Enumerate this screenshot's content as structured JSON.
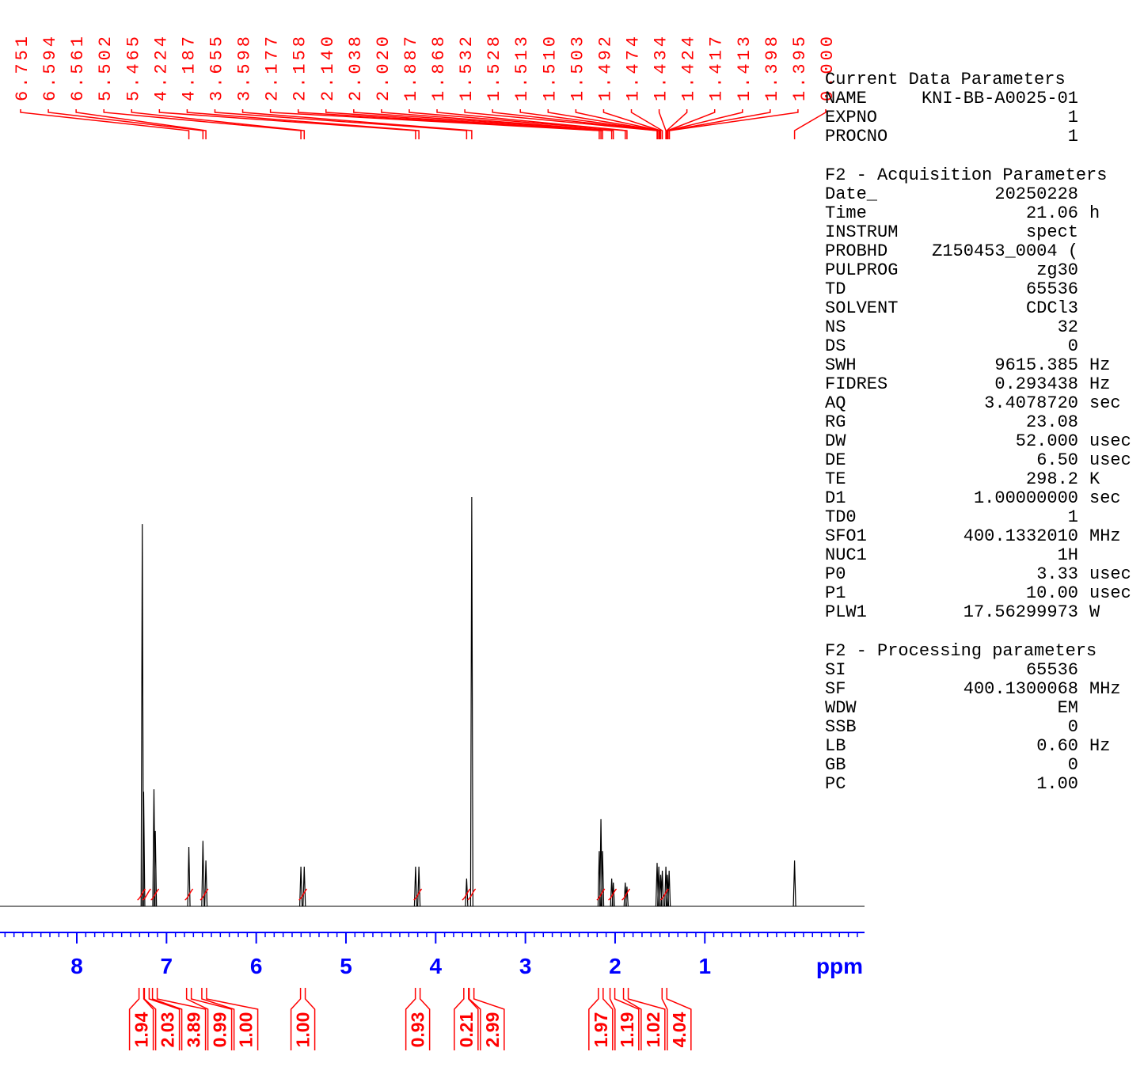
{
  "chart_data": {
    "type": "nmr",
    "color": "#000000",
    "annotation_color": "#ff0000",
    "axis_color": "#0000ff",
    "x_label": "ppm",
    "xlim": [
      8.856,
      -0.78
    ],
    "ylim": [
      0,
      100
    ],
    "xticks": [
      8,
      7,
      6,
      5,
      4,
      3,
      2,
      1
    ],
    "minor_step": 0.1,
    "peaks": [
      6.751,
      6.594,
      6.561,
      5.502,
      5.465,
      4.224,
      4.187,
      3.655,
      3.598,
      2.177,
      2.158,
      {
        "value": 2.14,
        "label": "2.140"
      },
      2.038,
      {
        "value": 2.02,
        "label": "2.020"
      },
      1.887,
      1.868,
      1.532,
      1.528,
      1.513,
      {
        "value": 1.51,
        "label": "1.510"
      },
      1.503,
      1.492,
      1.474,
      1.434,
      1.424,
      1.417,
      1.413,
      1.398,
      1.395,
      {
        "value": 0,
        "label": "0.000"
      }
    ],
    "spectrum": {
      "x": [
        7.27,
        7.255,
        7.14,
        7.125,
        6.751,
        6.594,
        6.561,
        5.502,
        5.465,
        4.224,
        4.187,
        3.655,
        3.598,
        2.177,
        2.158,
        2.14,
        2.038,
        2.02,
        1.887,
        1.868,
        1.532,
        1.513,
        1.492,
        1.474,
        1.434,
        1.417,
        1.398,
        0
      ],
      "values": [
        93.4,
        28.0,
        28.6,
        18.4,
        14.5,
        16.0,
        11.2,
        9.7,
        9.7,
        9.7,
        9.7,
        6.8,
        100,
        13.5,
        21.3,
        13.5,
        6.8,
        5.8,
        5.8,
        4.8,
        10.6,
        9.7,
        7.7,
        8.7,
        9.7,
        7.7,
        8.7,
        11.2
      ]
    },
    "integrals": {
      "x": [
        7.28,
        7.22,
        7.13,
        6.75,
        6.58,
        5.48,
        4.2,
        3.66,
        3.6,
        2.16,
        2.03,
        1.88,
        1.45
      ],
      "values": [
        1.94,
        2.03,
        3.89,
        0.99,
        1.0,
        1.0,
        0.93,
        0.21,
        2.99,
        1.97,
        1.19,
        1.02,
        4.04
      ],
      "value_labels": [
        "1.94",
        "2.03",
        "3.89",
        "0.99",
        "1.00",
        "1.00",
        "0.93",
        "0.21",
        "2.99",
        "1.97",
        "1.19",
        "1.02",
        "4.04"
      ]
    }
  },
  "parameters": [
    {
      "title": "Current Data Parameters",
      "rows": [
        [
          "NAME",
          "KNI-BB-A0025-01"
        ],
        [
          "EXPNO",
          "1"
        ],
        [
          "PROCNO",
          "1"
        ]
      ]
    },
    {
      "title": "F2 - Acquisition Parameters",
      "rows": [
        [
          "Date_",
          "20250228"
        ],
        [
          "Time",
          "21.06",
          "h"
        ],
        [
          "INSTRUM",
          "spect"
        ],
        [
          "PROBHD",
          "Z150453_0004 ("
        ],
        [
          "PULPROG",
          "zg30"
        ],
        [
          "TD",
          "65536"
        ],
        [
          "SOLVENT",
          "CDCl3"
        ],
        [
          "NS",
          "32"
        ],
        [
          "DS",
          "0"
        ],
        [
          "SWH",
          "9615.385",
          "Hz"
        ],
        [
          "FIDRES",
          "0.293438",
          "Hz"
        ],
        [
          "AQ",
          "3.4078720",
          "sec"
        ],
        [
          "RG",
          "23.08"
        ],
        [
          "DW",
          "52.000",
          "usec"
        ],
        [
          "DE",
          "6.50",
          "usec"
        ],
        [
          "TE",
          "298.2",
          "K"
        ],
        [
          "D1",
          "1.00000000",
          "sec"
        ],
        [
          "TD0",
          "1"
        ],
        [
          "SFO1",
          "400.1332010",
          "MHz"
        ],
        [
          "NUC1",
          "1H"
        ],
        [
          "P0",
          "3.33",
          "usec"
        ],
        [
          "P1",
          "10.00",
          "usec"
        ],
        [
          "PLW1",
          "17.56299973",
          "W"
        ]
      ]
    },
    {
      "title": "F2 - Processing parameters",
      "rows": [
        [
          "SI",
          "65536"
        ],
        [
          "SF",
          "400.1300068",
          "MHz"
        ],
        [
          "WDW",
          "EM"
        ],
        [
          "SSB",
          "0"
        ],
        [
          "LB",
          "0.60",
          "Hz"
        ],
        [
          "GB",
          "0"
        ],
        [
          "PC",
          "1.00"
        ]
      ]
    }
  ]
}
